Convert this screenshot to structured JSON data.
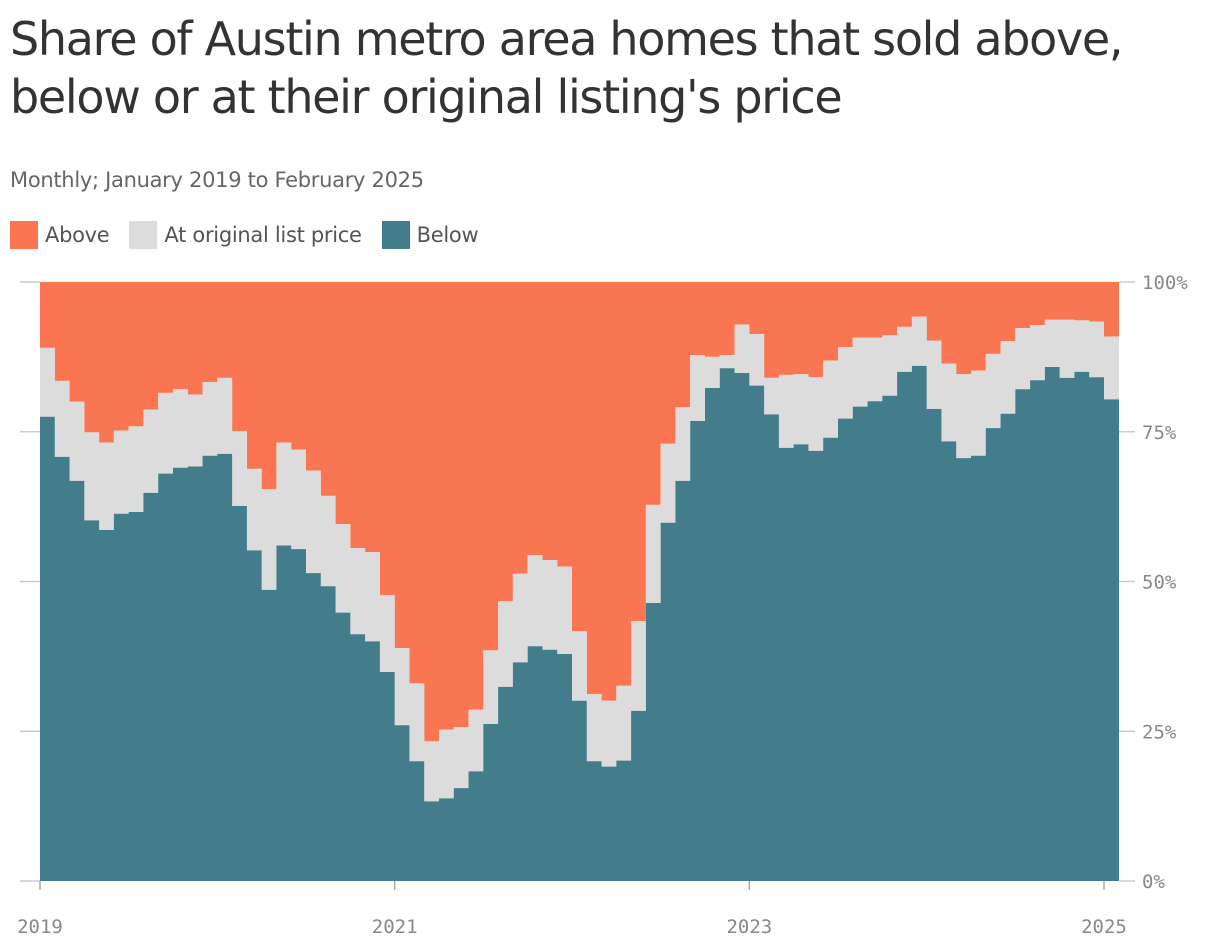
{
  "title": "Share of Austin metro area homes that sold above, below or at their original listing's price",
  "subtitle": "Monthly; January 2019 to February 2025",
  "legend": [
    {
      "label": "Above",
      "color": "#fa7652"
    },
    {
      "label": "At original list price",
      "color": "#dcdcdc"
    },
    {
      "label": "Below",
      "color": "#437c8a"
    }
  ],
  "chart_data": {
    "type": "area",
    "stacked": true,
    "step": true,
    "x_start": "2019-01",
    "x": [
      "2019-01",
      "2019-02",
      "2019-03",
      "2019-04",
      "2019-05",
      "2019-06",
      "2019-07",
      "2019-08",
      "2019-09",
      "2019-10",
      "2019-11",
      "2019-12",
      "2020-01",
      "2020-02",
      "2020-03",
      "2020-04",
      "2020-05",
      "2020-06",
      "2020-07",
      "2020-08",
      "2020-09",
      "2020-10",
      "2020-11",
      "2020-12",
      "2021-01",
      "2021-02",
      "2021-03",
      "2021-04",
      "2021-05",
      "2021-06",
      "2021-07",
      "2021-08",
      "2021-09",
      "2021-10",
      "2021-11",
      "2021-12",
      "2022-01",
      "2022-02",
      "2022-03",
      "2022-04",
      "2022-05",
      "2022-06",
      "2022-07",
      "2022-08",
      "2022-09",
      "2022-10",
      "2022-11",
      "2022-12",
      "2023-01",
      "2023-02",
      "2023-03",
      "2023-04",
      "2023-05",
      "2023-06",
      "2023-07",
      "2023-08",
      "2023-09",
      "2023-10",
      "2023-11",
      "2023-12",
      "2024-01",
      "2024-02",
      "2024-03",
      "2024-04",
      "2024-05",
      "2024-06",
      "2024-07",
      "2024-08",
      "2024-09",
      "2024-10",
      "2024-11",
      "2024-12",
      "2025-01",
      "2025-02"
    ],
    "series": [
      {
        "name": "Below",
        "color": "#437c8a",
        "values": [
          77.5,
          70.8,
          66.8,
          60.2,
          58.6,
          61.3,
          61.6,
          64.8,
          68.0,
          69.0,
          69.2,
          71.0,
          71.3,
          62.6,
          55.2,
          48.6,
          56.0,
          55.4,
          51.4,
          49.2,
          44.8,
          41.2,
          40.0,
          34.9,
          26.0,
          20.0,
          13.3,
          13.8,
          15.5,
          18.3,
          26.2,
          32.4,
          36.5,
          39.2,
          38.6,
          37.9,
          30.1,
          20.0,
          19.1,
          20.1,
          28.4,
          46.4,
          59.8,
          66.8,
          76.8,
          82.3,
          85.6,
          84.8,
          82.7,
          77.9,
          72.3,
          72.9,
          71.8,
          74.0,
          77.2,
          79.2,
          80.1,
          81.0,
          85.0,
          86.0,
          78.8,
          73.4,
          70.6,
          71.0,
          75.6,
          78.0,
          82.1,
          83.6,
          85.8,
          84.0,
          85.0,
          84.1,
          80.4,
          80.4
        ]
      },
      {
        "name": "At original list price",
        "color": "#dcdcdc",
        "values": [
          11.5,
          12.7,
          13.2,
          14.7,
          14.6,
          13.9,
          14.3,
          13.9,
          13.5,
          13.1,
          12.0,
          12.3,
          12.7,
          12.5,
          13.6,
          16.8,
          17.2,
          16.6,
          17.1,
          15.1,
          14.8,
          14.4,
          14.9,
          12.8,
          12.9,
          13.0,
          10.0,
          11.5,
          10.2,
          10.3,
          12.3,
          14.3,
          14.8,
          15.2,
          15.0,
          14.6,
          11.6,
          11.2,
          11.0,
          12.5,
          15.0,
          16.4,
          13.2,
          12.3,
          11.0,
          5.2,
          2.2,
          8.1,
          8.6,
          6.1,
          12.2,
          11.7,
          12.3,
          12.9,
          11.9,
          11.5,
          10.6,
          10.1,
          7.5,
          8.2,
          11.4,
          13.0,
          14.0,
          14.2,
          12.4,
          12.1,
          10.2,
          9.2,
          7.9,
          9.7,
          8.6,
          9.3,
          10.5,
          10.5
        ]
      },
      {
        "name": "Above",
        "color": "#fa7652",
        "values": [
          11.0,
          16.5,
          20.0,
          25.1,
          26.8,
          24.8,
          24.1,
          21.3,
          18.5,
          17.9,
          18.8,
          16.7,
          16.0,
          24.9,
          31.2,
          34.6,
          26.8,
          28.0,
          31.5,
          35.7,
          40.4,
          44.4,
          45.1,
          52.3,
          61.1,
          67.0,
          76.7,
          74.7,
          74.3,
          71.4,
          61.5,
          53.3,
          48.7,
          45.6,
          46.4,
          47.5,
          58.3,
          68.8,
          69.9,
          67.4,
          56.6,
          37.2,
          27.0,
          20.9,
          12.2,
          12.5,
          12.2,
          7.1,
          8.7,
          16.0,
          15.5,
          15.4,
          15.9,
          13.1,
          10.9,
          9.3,
          9.3,
          8.9,
          7.5,
          5.8,
          9.8,
          13.6,
          15.4,
          14.8,
          12.0,
          9.9,
          7.7,
          7.2,
          6.3,
          6.3,
          6.4,
          6.6,
          9.1,
          9.1
        ]
      }
    ],
    "x_ticks": [
      "2019",
      "2021",
      "2023",
      "2025"
    ],
    "y_ticks": [
      "0%",
      "25%",
      "50%",
      "75%",
      "100%"
    ],
    "ylim": [
      0,
      100
    ],
    "y_axis_side": "right",
    "gridlines": true
  }
}
